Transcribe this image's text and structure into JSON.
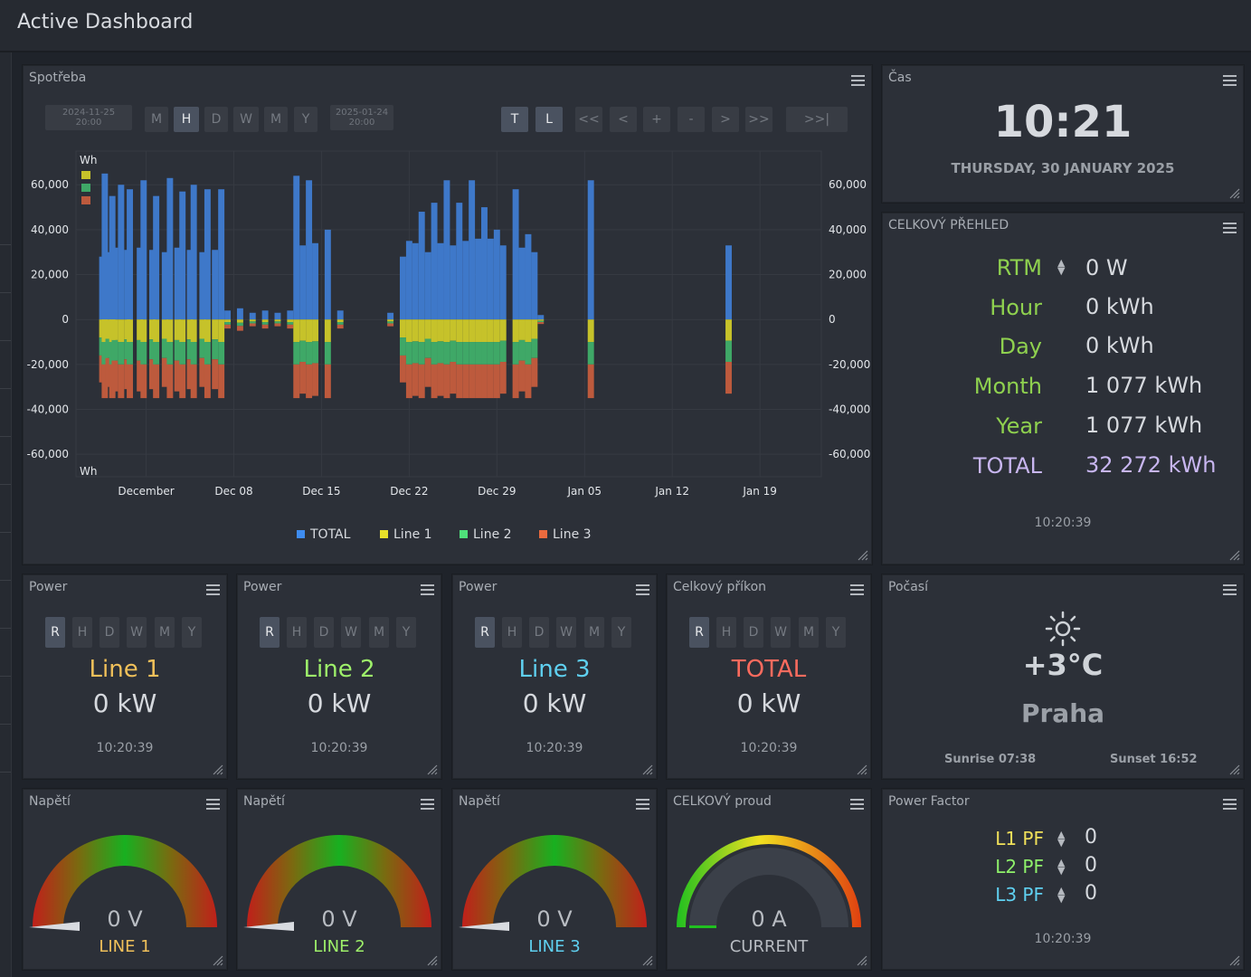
{
  "app": {
    "title": "Active Dashboard"
  },
  "colors": {
    "total": "#3e78c9",
    "line1": "#c6c22a",
    "line2": "#3fa867",
    "line3": "#bd5a3d",
    "green_label": "#8fd14f",
    "line1_text": "#f0c05a",
    "line2_text": "#9ef06a",
    "line3_text": "#5fd0f0",
    "total_text": "#ff6b5e"
  },
  "consumption": {
    "title": "Spotřeba",
    "date_from": [
      "2024-11-25",
      "20:00"
    ],
    "date_to": [
      "2025-01-24",
      "20:00"
    ],
    "period_buttons": [
      "M",
      "H",
      "D",
      "W",
      "M",
      "Y"
    ],
    "active_period": "H",
    "mode_buttons": [
      "T",
      "L"
    ],
    "nav_buttons": [
      "<<",
      "<",
      "+",
      "-",
      ">",
      ">>",
      ">>|"
    ]
  },
  "chart_data": {
    "type": "bar",
    "ylabel": "Wh",
    "ylim": [
      -70000,
      75000
    ],
    "y_ticks": [
      "60,000",
      "40,000",
      "20,000",
      "0",
      "-20,000",
      "-40,000",
      "-60,000"
    ],
    "y_tick_values": [
      60000,
      40000,
      20000,
      0,
      -20000,
      -40000,
      -60000
    ],
    "x_ticks": [
      "December",
      "Dec 08",
      "Dec 15",
      "Dec 22",
      "Dec 29",
      "Jan 05",
      "Jan 12",
      "Jan 19"
    ],
    "x_tick_days": [
      0.5,
      7.5,
      14.5,
      21.5,
      28.5,
      35.5,
      42.5,
      49.5
    ],
    "x_range_days": [
      -5.1,
      54.4
    ],
    "legend": [
      "TOTAL",
      "Line 1",
      "Line 2",
      "Line 3"
    ],
    "series": [
      {
        "name": "TOTAL",
        "stack": "positive",
        "values": [
          [
            -3,
            28000
          ],
          [
            -2.8,
            65000
          ],
          [
            -2.5,
            30000
          ],
          [
            -2.2,
            55000
          ],
          [
            -2,
            32000
          ],
          [
            -1.5,
            60000
          ],
          [
            -1,
            31000
          ],
          [
            -0.8,
            58000
          ],
          [
            0,
            32000
          ],
          [
            0.3,
            62000
          ],
          [
            1,
            31000
          ],
          [
            1.3,
            55000
          ],
          [
            2,
            30000
          ],
          [
            2.4,
            63000
          ],
          [
            3,
            32000
          ],
          [
            3.4,
            57000
          ],
          [
            4,
            31000
          ],
          [
            4.3,
            60000
          ],
          [
            5,
            30000
          ],
          [
            5.4,
            58000
          ],
          [
            6,
            31000
          ],
          [
            6.5,
            58000
          ],
          [
            7,
            4000
          ],
          [
            8,
            5000
          ],
          [
            9,
            3000
          ],
          [
            10,
            4000
          ],
          [
            11,
            3000
          ],
          [
            12,
            4000
          ],
          [
            12.5,
            64000
          ],
          [
            13,
            33000
          ],
          [
            13.5,
            62000
          ],
          [
            14,
            34000
          ],
          [
            15,
            40000
          ],
          [
            16,
            4000
          ],
          [
            20,
            3000
          ],
          [
            21,
            28000
          ],
          [
            21.5,
            35000
          ],
          [
            22,
            34000
          ],
          [
            22.5,
            48000
          ],
          [
            23,
            30000
          ],
          [
            23.5,
            52000
          ],
          [
            24,
            34000
          ],
          [
            24.5,
            62000
          ],
          [
            25,
            33000
          ],
          [
            25.5,
            52000
          ],
          [
            26,
            35000
          ],
          [
            26.5,
            62000
          ],
          [
            27,
            36000
          ],
          [
            27.5,
            50000
          ],
          [
            28,
            36000
          ],
          [
            28.5,
            40000
          ],
          [
            29,
            33000
          ],
          [
            30,
            58000
          ],
          [
            30.5,
            32000
          ],
          [
            31,
            38000
          ],
          [
            31.5,
            30000
          ],
          [
            32,
            2000
          ],
          [
            36,
            62000
          ],
          [
            47,
            33000
          ]
        ]
      },
      {
        "name": "Line 1",
        "stack": "negative",
        "values": [
          [
            0,
            -10000
          ],
          [
            14,
            -10000
          ],
          [
            28,
            -10000
          ]
        ]
      },
      {
        "name": "Line 2",
        "stack": "negative",
        "values": [
          [
            0,
            -10000
          ],
          [
            14,
            -10000
          ],
          [
            28,
            -10000
          ]
        ]
      },
      {
        "name": "Line 3",
        "stack": "negative",
        "values": [
          [
            0,
            -15000
          ],
          [
            14,
            -15000
          ],
          [
            28,
            -15000
          ]
        ]
      }
    ]
  },
  "clock": {
    "title": "Čas",
    "time": "10:21",
    "date": "THURSDAY, 30 JANUARY 2025"
  },
  "overview": {
    "title": "CELKOVÝ PŘEHLED",
    "rows": [
      {
        "label": "RTM",
        "value": "0 W",
        "sort": true
      },
      {
        "label": "Hour",
        "value": "0 kWh"
      },
      {
        "label": "Day",
        "value": "0 kWh"
      },
      {
        "label": "Month",
        "value": "1 077 kWh"
      },
      {
        "label": "Year",
        "value": "1 077 kWh"
      },
      {
        "label": "TOTAL",
        "value": "32 272 kWh"
      }
    ],
    "timestamp": "10:20:39"
  },
  "power_cards": [
    {
      "title": "Power",
      "label": "Line 1",
      "value": "0 kW",
      "timestamp": "10:20:39",
      "buttons": [
        "R",
        "H",
        "D",
        "W",
        "M",
        "Y"
      ]
    },
    {
      "title": "Power",
      "label": "Line 2",
      "value": "0 kW",
      "timestamp": "10:20:39",
      "buttons": [
        "R",
        "H",
        "D",
        "W",
        "M",
        "Y"
      ]
    },
    {
      "title": "Power",
      "label": "Line 3",
      "value": "0 kW",
      "timestamp": "10:20:39",
      "buttons": [
        "R",
        "H",
        "D",
        "W",
        "M",
        "Y"
      ]
    },
    {
      "title": "Celkový příkon",
      "label": "TOTAL",
      "value": "0 kW",
      "timestamp": "10:20:39",
      "buttons": [
        "R",
        "H",
        "D",
        "W",
        "M",
        "Y"
      ]
    }
  ],
  "weather": {
    "title": "Počasí",
    "icon": "sun-icon",
    "temp": "+3°C",
    "city": "Praha",
    "sunrise": "Sunrise 07:38",
    "sunset": "Sunset 16:52"
  },
  "voltage_gauges": [
    {
      "title": "Napětí",
      "value": "0 V",
      "label": "LINE 1",
      "level": 0
    },
    {
      "title": "Napětí",
      "value": "0 V",
      "label": "LINE 2",
      "level": 0
    },
    {
      "title": "Napětí",
      "value": "0 V",
      "label": "LINE 3",
      "level": 0
    }
  ],
  "current_gauge": {
    "title": "CELKOVÝ proud",
    "value": "0 A",
    "label": "CURRENT",
    "level": 0
  },
  "power_factor": {
    "title": "Power Factor",
    "rows": [
      {
        "label": "L1 PF",
        "value": "0"
      },
      {
        "label": "L2 PF",
        "value": "0"
      },
      {
        "label": "L3 PF",
        "value": "0"
      }
    ],
    "timestamp": "10:20:39"
  }
}
